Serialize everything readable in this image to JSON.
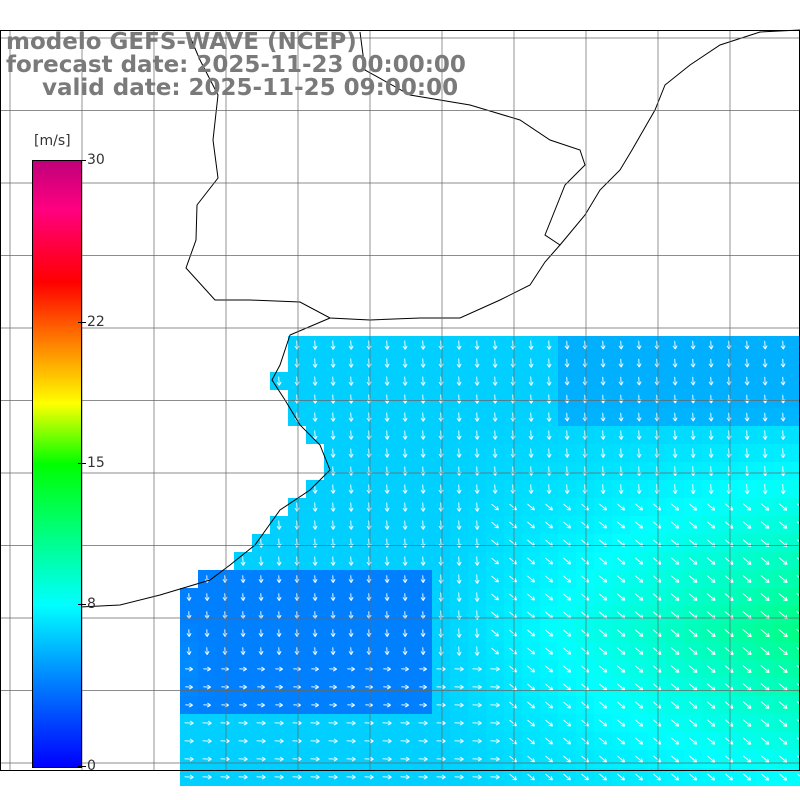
{
  "title": {
    "line1": "modelo GEFS-WAVE (NCEP)",
    "line2": "forecast date: 2025-11-23 00:00:00",
    "line3": "valid date: 2025-11-25 09:00:00"
  },
  "colorbar": {
    "unit": "[m/s]",
    "ticks": [
      "30",
      "22",
      "15",
      "8",
      "0"
    ],
    "tick_values": [
      30,
      22,
      15,
      8,
      0
    ],
    "colors": {
      "0": "#0000ff",
      "8": "#00ffff",
      "15": "#00ff00",
      "18": "#ffff00",
      "22": "#ff0000",
      "30": "#c0007a"
    }
  },
  "map": {
    "ocean_field": "wind speed with wind direction arrows",
    "land_color": "#ffffff",
    "grid": true,
    "arrow_color": "#ffffff"
  }
}
